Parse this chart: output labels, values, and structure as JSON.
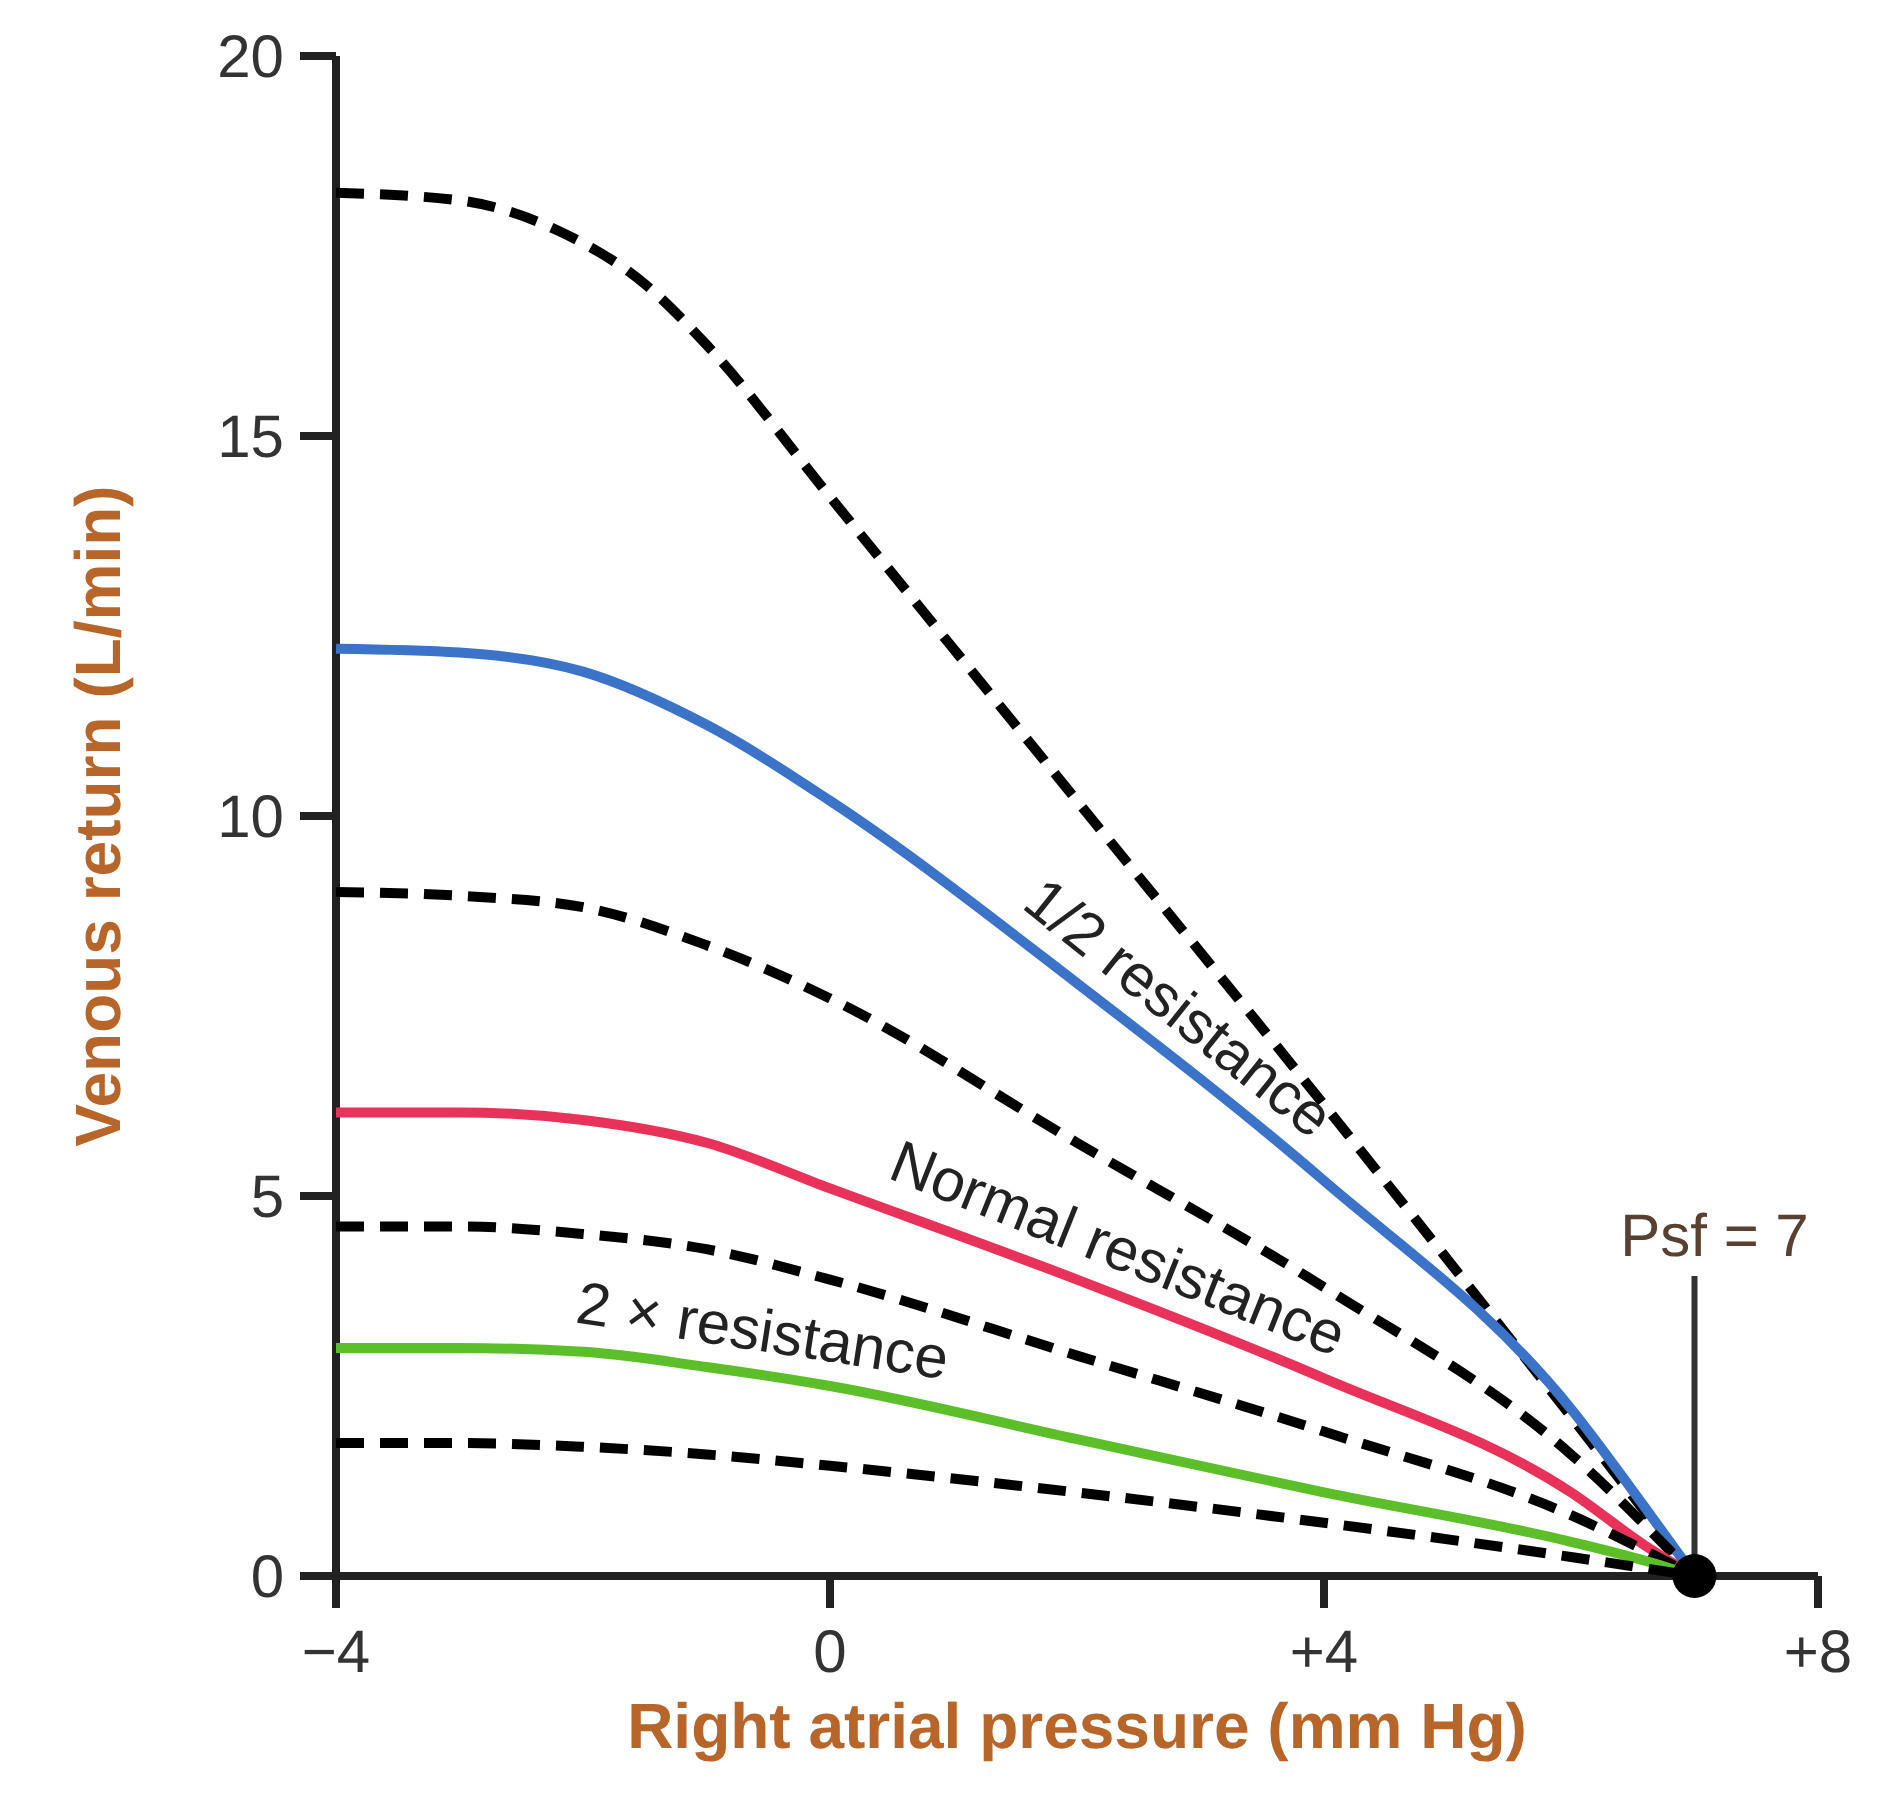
{
  "chart_data": {
    "type": "line",
    "xlabel": "Right atrial pressure (mm Hg)",
    "ylabel": "Venous return (L/min)",
    "xlim": [
      -4,
      8
    ],
    "xticks": [
      {
        "value": -4,
        "label": "−4"
      },
      0,
      {
        "value": 4,
        "label": "+4"
      },
      {
        "value": 8,
        "label": "+8"
      }
    ],
    "ylim": [
      0,
      20
    ],
    "yticks": [
      0,
      5,
      10,
      15,
      20
    ],
    "grid": false,
    "marker": "none",
    "annotations": [
      {
        "text": "Psf = 7",
        "x": 7,
        "y": 0
      }
    ],
    "series": [
      {
        "color": "#000000",
        "line_style": "dashed",
        "x": [
          -4,
          -3,
          -2.2,
          -1.5,
          -1,
          0,
          2,
          4,
          6,
          7
        ],
        "values": [
          18.2,
          18.1,
          17.7,
          17.0,
          16.2,
          14.2,
          10.2,
          6.2,
          2.1,
          0
        ]
      },
      {
        "name": "1/2 resistance",
        "color": "#3a73c8",
        "line_style": "solid",
        "x": [
          -4,
          -3,
          -2,
          -1,
          0,
          2,
          4,
          6,
          6.6,
          7
        ],
        "values": [
          12.2,
          12.15,
          11.9,
          11.2,
          10.2,
          7.8,
          5.2,
          2.2,
          0.9,
          0
        ]
      },
      {
        "color": "#000000",
        "line_style": "dashed",
        "x": [
          -4,
          -3,
          -2,
          -1,
          0,
          2,
          4,
          6,
          7
        ],
        "values": [
          9.0,
          8.95,
          8.8,
          8.3,
          7.6,
          5.7,
          3.8,
          1.6,
          0
        ]
      },
      {
        "name": "Normal resistance",
        "color": "#e8325a",
        "line_style": "solid",
        "x": [
          -4,
          -3,
          -2,
          -1,
          0,
          2,
          4,
          6,
          6.6,
          7
        ],
        "values": [
          6.1,
          6.1,
          6.0,
          5.7,
          5.1,
          3.9,
          2.6,
          1.1,
          0.4,
          0
        ]
      },
      {
        "color": "#000000",
        "line_style": "dashed",
        "x": [
          -4,
          -3,
          -2,
          -1,
          0,
          2,
          4,
          6,
          7
        ],
        "values": [
          4.6,
          4.6,
          4.5,
          4.3,
          3.9,
          2.9,
          1.9,
          0.8,
          0
        ]
      },
      {
        "name": "2 × resistance",
        "color": "#5cbf2a",
        "line_style": "solid",
        "x": [
          -4,
          -3,
          -2,
          -1,
          0,
          2,
          4,
          6,
          6.6,
          7
        ],
        "values": [
          3.0,
          3.0,
          2.95,
          2.75,
          2.5,
          1.8,
          1.1,
          0.45,
          0.2,
          0
        ]
      },
      {
        "color": "#000000",
        "line_style": "dashed",
        "x": [
          -4,
          -3,
          -2,
          -1,
          0,
          2,
          4,
          6,
          7
        ],
        "values": [
          1.75,
          1.75,
          1.7,
          1.6,
          1.45,
          1.1,
          0.7,
          0.25,
          0
        ]
      },
      {
        "type": "scatter",
        "color": "#000000",
        "marker": "circle",
        "x": [
          7
        ],
        "values": [
          0
        ]
      }
    ]
  }
}
